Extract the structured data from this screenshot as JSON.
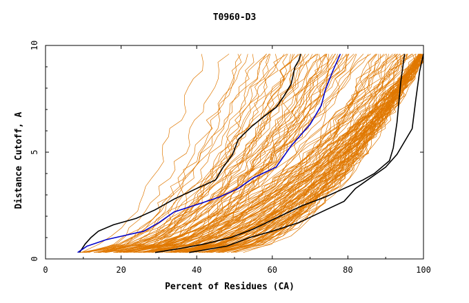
{
  "chart_data": {
    "type": "line",
    "title": "T0960-D3",
    "xlabel": "Percent of Residues (CA)",
    "ylabel": "Distance Cutoff, A",
    "xlim": [
      0,
      100
    ],
    "ylim": [
      0,
      10
    ],
    "x_ticks": [
      "0",
      "20",
      "40",
      "60",
      "80",
      "100"
    ],
    "y_ticks": [
      "0",
      "5",
      "10"
    ],
    "grid": false,
    "legend": "none",
    "colors": {
      "background_series": "#e07800",
      "highlight_black": "#000000",
      "highlight_blue": "#0000cc"
    },
    "series": [
      {
        "color": "#000000",
        "x": [
          9.0,
          10.5,
          12.0,
          14.0,
          18.0,
          24.0,
          29.0,
          34.0,
          40.0,
          45.0,
          47.0,
          49.5,
          51.0,
          54.5,
          58.0,
          61.0,
          63.0,
          65.0,
          66.0,
          67.0,
          67.5
        ],
        "y": [
          0.3,
          0.7,
          1.0,
          1.3,
          1.6,
          1.9,
          2.3,
          2.8,
          3.3,
          3.7,
          4.3,
          4.9,
          5.6,
          6.2,
          6.7,
          7.1,
          7.6,
          8.2,
          9.0,
          9.3,
          9.6
        ]
      },
      {
        "color": "#0000cc",
        "x": [
          8.5,
          11.0,
          16.0,
          21.0,
          26.0,
          30.0,
          34.0,
          41.0,
          46.0,
          51.0,
          55.0,
          61.0,
          65.0,
          70.0,
          73.0,
          74.0,
          76.0,
          78.0
        ],
        "y": [
          0.3,
          0.6,
          0.9,
          1.1,
          1.3,
          1.7,
          2.2,
          2.6,
          2.9,
          3.3,
          3.8,
          4.3,
          5.3,
          6.3,
          7.2,
          7.9,
          8.8,
          9.6
        ]
      },
      {
        "color": "#000000",
        "x": [
          29.0,
          36.0,
          42.0,
          49.0,
          55.0,
          62.0,
          68.0,
          74.0,
          79.0,
          84.0,
          87.0,
          89.0,
          91.0,
          92.0,
          93.0,
          94.0,
          95.0
        ],
        "y": [
          0.3,
          0.5,
          0.7,
          1.0,
          1.4,
          2.0,
          2.5,
          2.9,
          3.3,
          3.7,
          4.0,
          4.3,
          4.6,
          5.2,
          6.4,
          8.3,
          9.6
        ]
      },
      {
        "color": "#000000",
        "x": [
          38.0,
          48.0,
          54.0,
          60.0,
          67.0,
          73.0,
          79.0,
          82.0,
          86.0,
          90.0,
          93.0,
          95.0,
          97.0,
          98.0,
          99.0,
          100.0
        ],
        "y": [
          0.3,
          0.6,
          1.0,
          1.3,
          1.7,
          2.2,
          2.7,
          3.3,
          3.8,
          4.3,
          4.9,
          5.5,
          6.1,
          7.5,
          8.8,
          9.6
        ]
      }
    ]
  }
}
